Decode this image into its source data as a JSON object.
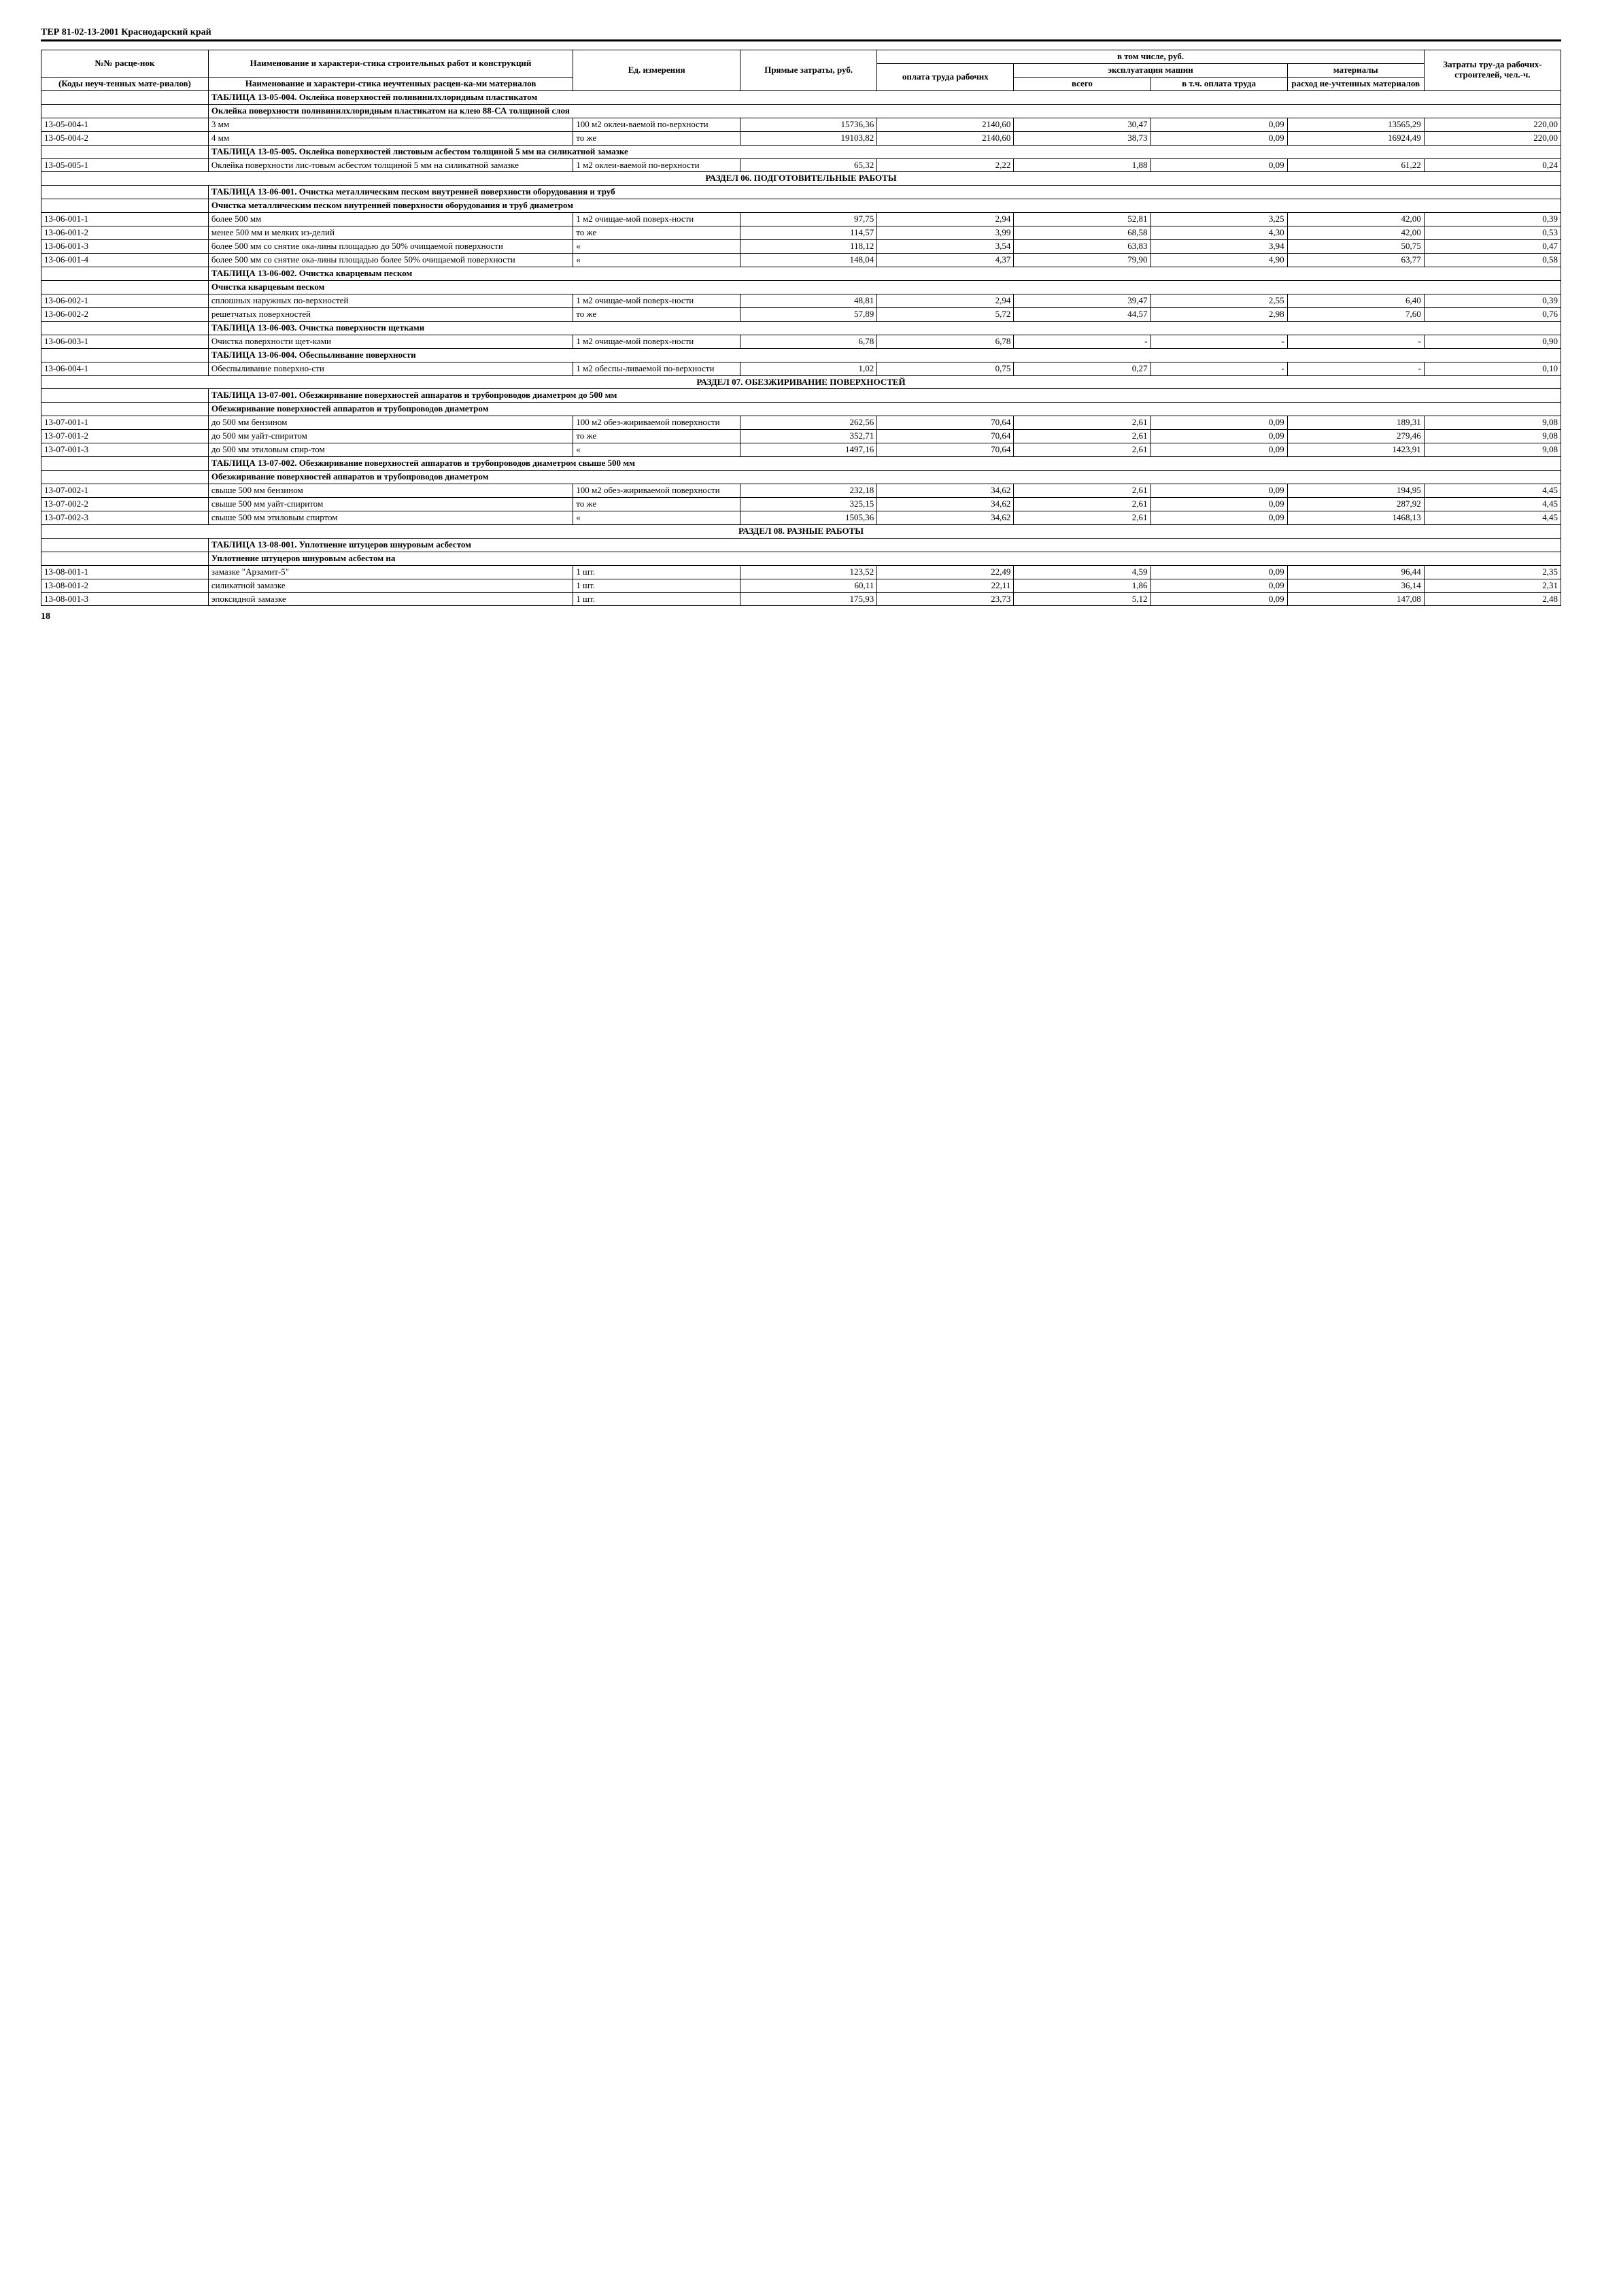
{
  "doc_header": "ТЕР 81-02-13-2001   Краснодарский край",
  "page_number": "18",
  "header": {
    "h1": "№№ расце-нок",
    "h1b": "(Коды неуч-тенных мате-риалов)",
    "h2": "Наименование и характери-стика строительных работ и конструкций",
    "h2b": "Наименование и характери-стика неучтенных расцен-ка-ми материалов",
    "h3": "Ед. измерения",
    "h4": "Прямые затраты, руб.",
    "h5_top": "в том числе, руб.",
    "h5_1": "оплата труда рабочих",
    "h5_2_top": "эксплуатация машин",
    "h5_2a": "всего",
    "h5_2b": "в т.ч. оплата труда",
    "h5_3": "материалы",
    "h5_3b": "расход не-учтенных материалов",
    "h6": "Затраты тру-да рабочих-строителей, чел.-ч."
  },
  "rows": [
    {
      "type": "title",
      "text": "ТАБЛИЦА 13-05-004. Оклейка поверхностей поливинилхлоридным пластикатом"
    },
    {
      "type": "subtitle",
      "text": "Оклейка поверхности поливинилхлоридным пластикатом на клею 88-СА толщиной слоя"
    },
    {
      "type": "data",
      "code": "13-05-004-1",
      "desc": "3 мм",
      "unit": "100 м2 оклеи-ваемой по-верхности",
      "v": [
        "15736,36",
        "2140,60",
        "30,47",
        "0,09",
        "13565,29",
        "220,00"
      ]
    },
    {
      "type": "data",
      "code": "13-05-004-2",
      "desc": "4 мм",
      "unit": "то же",
      "v": [
        "19103,82",
        "2140,60",
        "38,73",
        "0,09",
        "16924,49",
        "220,00"
      ]
    },
    {
      "type": "title",
      "text": "ТАБЛИЦА 13-05-005. Оклейка поверхностей листовым асбестом толщиной 5 мм на силикатной замазке"
    },
    {
      "type": "data",
      "code": "13-05-005-1",
      "desc": "Оклейка поверхности лис-товым асбестом толщиной 5 мм на силикатной замазке",
      "unit": "1 м2 оклеи-ваемой по-верхности",
      "v": [
        "65,32",
        "2,22",
        "1,88",
        "0,09",
        "61,22",
        "0,24"
      ]
    },
    {
      "type": "section",
      "text": "РАЗДЕЛ 06. ПОДГОТОВИТЕЛЬНЫЕ РАБОТЫ"
    },
    {
      "type": "title",
      "text": "ТАБЛИЦА 13-06-001. Очистка металлическим песком внутренней поверхности оборудования и труб"
    },
    {
      "type": "subtitle",
      "text": "Очистка металлическим песком внутренней поверхности оборудования и труб диаметром"
    },
    {
      "type": "data",
      "code": "13-06-001-1",
      "desc": "более 500 мм",
      "unit": "1 м2 очищае-мой поверх-ности",
      "v": [
        "97,75",
        "2,94",
        "52,81",
        "3,25",
        "42,00",
        "0,39"
      ]
    },
    {
      "type": "data",
      "code": "13-06-001-2",
      "desc": "менее 500 мм и мелких из-делий",
      "unit": "то же",
      "v": [
        "114,57",
        "3,99",
        "68,58",
        "4,30",
        "42,00",
        "0,53"
      ]
    },
    {
      "type": "data",
      "code": "13-06-001-3",
      "desc": "более 500 мм со снятие ока-лины площадью до 50% очищаемой поверхности",
      "unit": "«",
      "v": [
        "118,12",
        "3,54",
        "63,83",
        "3,94",
        "50,75",
        "0,47"
      ]
    },
    {
      "type": "data",
      "code": "13-06-001-4",
      "desc": "более 500 мм со снятие ока-лины площадью более 50% очищаемой поверхности",
      "unit": "«",
      "v": [
        "148,04",
        "4,37",
        "79,90",
        "4,90",
        "63,77",
        "0,58"
      ]
    },
    {
      "type": "title",
      "text": "ТАБЛИЦА 13-06-002. Очистка кварцевым песком"
    },
    {
      "type": "subtitle",
      "text": "Очистка кварцевым песком"
    },
    {
      "type": "data",
      "code": "13-06-002-1",
      "desc": "сплошных наружных по-верхностей",
      "unit": "1 м2 очищае-мой поверх-ности",
      "v": [
        "48,81",
        "2,94",
        "39,47",
        "2,55",
        "6,40",
        "0,39"
      ]
    },
    {
      "type": "data",
      "code": "13-06-002-2",
      "desc": "решетчатых поверхностей",
      "unit": "то же",
      "v": [
        "57,89",
        "5,72",
        "44,57",
        "2,98",
        "7,60",
        "0,76"
      ]
    },
    {
      "type": "title",
      "text": "ТАБЛИЦА 13-06-003. Очистка поверхности щетками"
    },
    {
      "type": "data",
      "code": "13-06-003-1",
      "desc": "Очистка поверхности щет-ками",
      "unit": "1 м2 очищае-мой поверх-ности",
      "v": [
        "6,78",
        "6,78",
        "-",
        "-",
        "-",
        "0,90"
      ]
    },
    {
      "type": "title",
      "text": "ТАБЛИЦА 13-06-004. Обеспыливание поверхности"
    },
    {
      "type": "data",
      "code": "13-06-004-1",
      "desc": "Обеспыливание поверхно-сти",
      "unit": "1 м2 обеспы-ливаемой по-верхности",
      "v": [
        "1,02",
        "0,75",
        "0,27",
        "-",
        "-",
        "0,10"
      ]
    },
    {
      "type": "section",
      "text": "РАЗДЕЛ 07. ОБЕЗЖИРИВАНИЕ ПОВЕРХНОСТЕЙ"
    },
    {
      "type": "title",
      "text": "ТАБЛИЦА 13-07-001. Обезжиривание поверхностей аппаратов и трубопроводов диаметром до 500 мм"
    },
    {
      "type": "subtitle",
      "text": "Обезжиривание поверхностей аппаратов и трубопроводов диаметром"
    },
    {
      "type": "data",
      "code": "13-07-001-1",
      "desc": "до 500 мм бензином",
      "unit": "100 м2 обез-жириваемой поверхности",
      "v": [
        "262,56",
        "70,64",
        "2,61",
        "0,09",
        "189,31",
        "9,08"
      ]
    },
    {
      "type": "data",
      "code": "13-07-001-2",
      "desc": "до 500 мм уайт-спиритом",
      "unit": "то же",
      "v": [
        "352,71",
        "70,64",
        "2,61",
        "0,09",
        "279,46",
        "9,08"
      ]
    },
    {
      "type": "data",
      "code": "13-07-001-3",
      "desc": "до 500 мм этиловым спир-том",
      "unit": "«",
      "v": [
        "1497,16",
        "70,64",
        "2,61",
        "0,09",
        "1423,91",
        "9,08"
      ]
    },
    {
      "type": "title",
      "text": "ТАБЛИЦА 13-07-002. Обезжиривание поверхностей аппаратов и трубопроводов диаметром свыше 500 мм"
    },
    {
      "type": "subtitle",
      "text": "Обезжиривание поверхностей аппаратов и трубопроводов диаметром"
    },
    {
      "type": "data",
      "code": "13-07-002-1",
      "desc": "свыше 500 мм бензином",
      "unit": "100 м2 обез-жириваемой поверхности",
      "v": [
        "232,18",
        "34,62",
        "2,61",
        "0,09",
        "194,95",
        "4,45"
      ]
    },
    {
      "type": "data",
      "code": "13-07-002-2",
      "desc": "свыше 500 мм уайт-спиритом",
      "unit": "то же",
      "v": [
        "325,15",
        "34,62",
        "2,61",
        "0,09",
        "287,92",
        "4,45"
      ]
    },
    {
      "type": "data",
      "code": "13-07-002-3",
      "desc": "свыше 500 мм этиловым спиртом",
      "unit": "«",
      "v": [
        "1505,36",
        "34,62",
        "2,61",
        "0,09",
        "1468,13",
        "4,45"
      ]
    },
    {
      "type": "section",
      "text": "РАЗДЕЛ 08. РАЗНЫЕ РАБОТЫ"
    },
    {
      "type": "title",
      "text": "ТАБЛИЦА 13-08-001. Уплотнение штуцеров шнуровым асбестом"
    },
    {
      "type": "subtitle",
      "text": "Уплотнение штуцеров шнуровым асбестом на"
    },
    {
      "type": "data",
      "code": "13-08-001-1",
      "desc": "замазке \"Арзамит-5\"",
      "unit": "1 шт.",
      "v": [
        "123,52",
        "22,49",
        "4,59",
        "0,09",
        "96,44",
        "2,35"
      ]
    },
    {
      "type": "data",
      "code": "13-08-001-2",
      "desc": "силикатной замазке",
      "unit": "1 шт.",
      "v": [
        "60,11",
        "22,11",
        "1,86",
        "0,09",
        "36,14",
        "2,31"
      ]
    },
    {
      "type": "data",
      "code": "13-08-001-3",
      "desc": "эпоксидной замазке",
      "unit": "1 шт.",
      "v": [
        "175,93",
        "23,73",
        "5,12",
        "0,09",
        "147,08",
        "2,48"
      ]
    }
  ]
}
